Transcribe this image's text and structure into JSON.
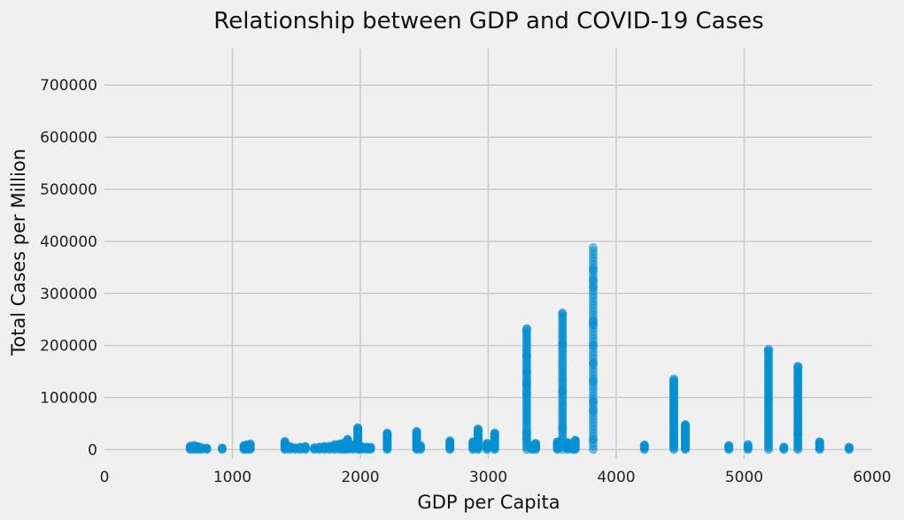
{
  "chart_data": {
    "type": "scatter",
    "title": "Relationship between GDP and COVID-19 Cases",
    "xlabel": "GDP per Capita",
    "ylabel": "Total Cases per Million",
    "xlim": [
      0,
      6000
    ],
    "ylim": [
      -18000,
      770000
    ],
    "xticks": [
      "0",
      "1000",
      "2000",
      "3000",
      "4000",
      "5000",
      "6000"
    ],
    "yticks": [
      "0",
      "100000",
      "200000",
      "300000",
      "400000",
      "500000",
      "600000",
      "700000"
    ],
    "grid": true,
    "color": "#008fd5",
    "background": "#f0f0f0",
    "columns": [
      {
        "x": 670,
        "max": 7000
      },
      {
        "x": 700,
        "max": 8000
      },
      {
        "x": 730,
        "max": 6000
      },
      {
        "x": 760,
        "max": 4000
      },
      {
        "x": 800,
        "max": 3000
      },
      {
        "x": 920,
        "max": 3000
      },
      {
        "x": 1090,
        "max": 8000
      },
      {
        "x": 1110,
        "max": 9000
      },
      {
        "x": 1140,
        "max": 11000
      },
      {
        "x": 1410,
        "max": 16000
      },
      {
        "x": 1450,
        "max": 6000
      },
      {
        "x": 1490,
        "max": 4000
      },
      {
        "x": 1530,
        "max": 5000
      },
      {
        "x": 1570,
        "max": 6000
      },
      {
        "x": 1640,
        "max": 4000
      },
      {
        "x": 1680,
        "max": 5000
      },
      {
        "x": 1720,
        "max": 6000
      },
      {
        "x": 1760,
        "max": 7000
      },
      {
        "x": 1800,
        "max": 10000
      },
      {
        "x": 1840,
        "max": 11000
      },
      {
        "x": 1870,
        "max": 13000
      },
      {
        "x": 1900,
        "max": 20000
      },
      {
        "x": 1940,
        "max": 9000
      },
      {
        "x": 1980,
        "max": 42000
      },
      {
        "x": 2010,
        "max": 6000
      },
      {
        "x": 2050,
        "max": 5000
      },
      {
        "x": 2080,
        "max": 5000
      },
      {
        "x": 2210,
        "max": 32000
      },
      {
        "x": 2440,
        "max": 35000
      },
      {
        "x": 2470,
        "max": 8000
      },
      {
        "x": 2700,
        "max": 17000
      },
      {
        "x": 2880,
        "max": 15000
      },
      {
        "x": 2920,
        "max": 40000
      },
      {
        "x": 2990,
        "max": 12000
      },
      {
        "x": 3050,
        "max": 32000
      },
      {
        "x": 3300,
        "max": 232000
      },
      {
        "x": 3340,
        "max": 8000
      },
      {
        "x": 3370,
        "max": 12000
      },
      {
        "x": 3540,
        "max": 15000
      },
      {
        "x": 3580,
        "max": 262000
      },
      {
        "x": 3620,
        "max": 14000
      },
      {
        "x": 3660,
        "max": 9000
      },
      {
        "x": 3680,
        "max": 18000
      },
      {
        "x": 3820,
        "max": 388000
      },
      {
        "x": 4220,
        "max": 9000
      },
      {
        "x": 4450,
        "max": 136000
      },
      {
        "x": 4540,
        "max": 48000
      },
      {
        "x": 4880,
        "max": 8000
      },
      {
        "x": 5030,
        "max": 10000
      },
      {
        "x": 5190,
        "max": 192000
      },
      {
        "x": 5310,
        "max": 5000
      },
      {
        "x": 5420,
        "max": 160000
      },
      {
        "x": 5590,
        "max": 15000
      },
      {
        "x": 5820,
        "max": 5000
      }
    ],
    "outliers": [
      {
        "x": 3300,
        "y": 180000
      },
      {
        "x": 3300,
        "y": 150000
      },
      {
        "x": 3300,
        "y": 130000
      },
      {
        "x": 3300,
        "y": 125000
      },
      {
        "x": 3300,
        "y": 108000
      },
      {
        "x": 3300,
        "y": 32000
      },
      {
        "x": 3300,
        "y": 20000
      },
      {
        "x": 3580,
        "y": 202000
      },
      {
        "x": 3580,
        "y": 112000
      },
      {
        "x": 3580,
        "y": 42000
      },
      {
        "x": 3820,
        "y": 345000
      },
      {
        "x": 3820,
        "y": 325000
      },
      {
        "x": 3820,
        "y": 312000
      },
      {
        "x": 3820,
        "y": 247000
      },
      {
        "x": 3820,
        "y": 240000
      },
      {
        "x": 3820,
        "y": 200000
      },
      {
        "x": 3820,
        "y": 165000
      },
      {
        "x": 3820,
        "y": 132000
      },
      {
        "x": 3820,
        "y": 92000
      },
      {
        "x": 3820,
        "y": 75000
      },
      {
        "x": 3820,
        "y": 20000
      },
      {
        "x": 5420,
        "y": 30000
      }
    ]
  }
}
